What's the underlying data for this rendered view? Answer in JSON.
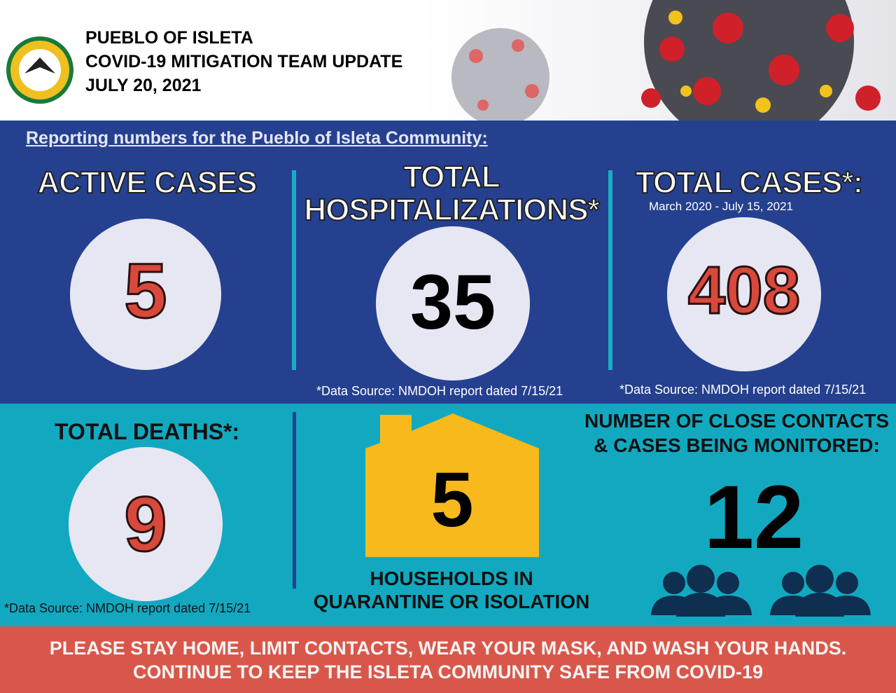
{
  "header": {
    "lines": [
      "PUEBLO OF ISLETA",
      "COVID-19 MITIGATION TEAM UPDATE",
      "JULY 20, 2021"
    ]
  },
  "subtitle": "Reporting numbers for the Pueblo of Isleta Community:",
  "stats": [
    {
      "label": [
        "ACTIVE CASES"
      ],
      "value": 5
    },
    {
      "label": [
        "TOTAL",
        "HOSPITALIZATIONS*"
      ],
      "value": 35,
      "source": "*Data Source: NMDOH report dated 7/15/21"
    },
    {
      "label": [
        "TOTAL CASES*:"
      ],
      "note": "March 2020 - July 15, 2021",
      "value": 408,
      "source": "*Data Source: NMDOH report dated 7/15/21"
    },
    {
      "label": [
        "TOTAL DEATHS*:"
      ],
      "value": 9,
      "source": "*Data Source: NMDOH report dated 7/15/21"
    },
    {
      "value": 5,
      "caption": [
        "HOUSEHOLDS IN",
        "QUARANTINE OR ISOLATION"
      ]
    },
    {
      "label": [
        "NUMBER OF CLOSE CONTACTS",
        "& CASES BEING MONITORED:"
      ],
      "value": 12
    }
  ],
  "footer": [
    "PLEASE STAY HOME, LIMIT CONTACTS, WEAR YOUR MASK, AND WASH YOUR HANDS.",
    "CONTINUE TO KEEP THE ISLETA COMMUNITY SAFE FROM COVID-19"
  ]
}
